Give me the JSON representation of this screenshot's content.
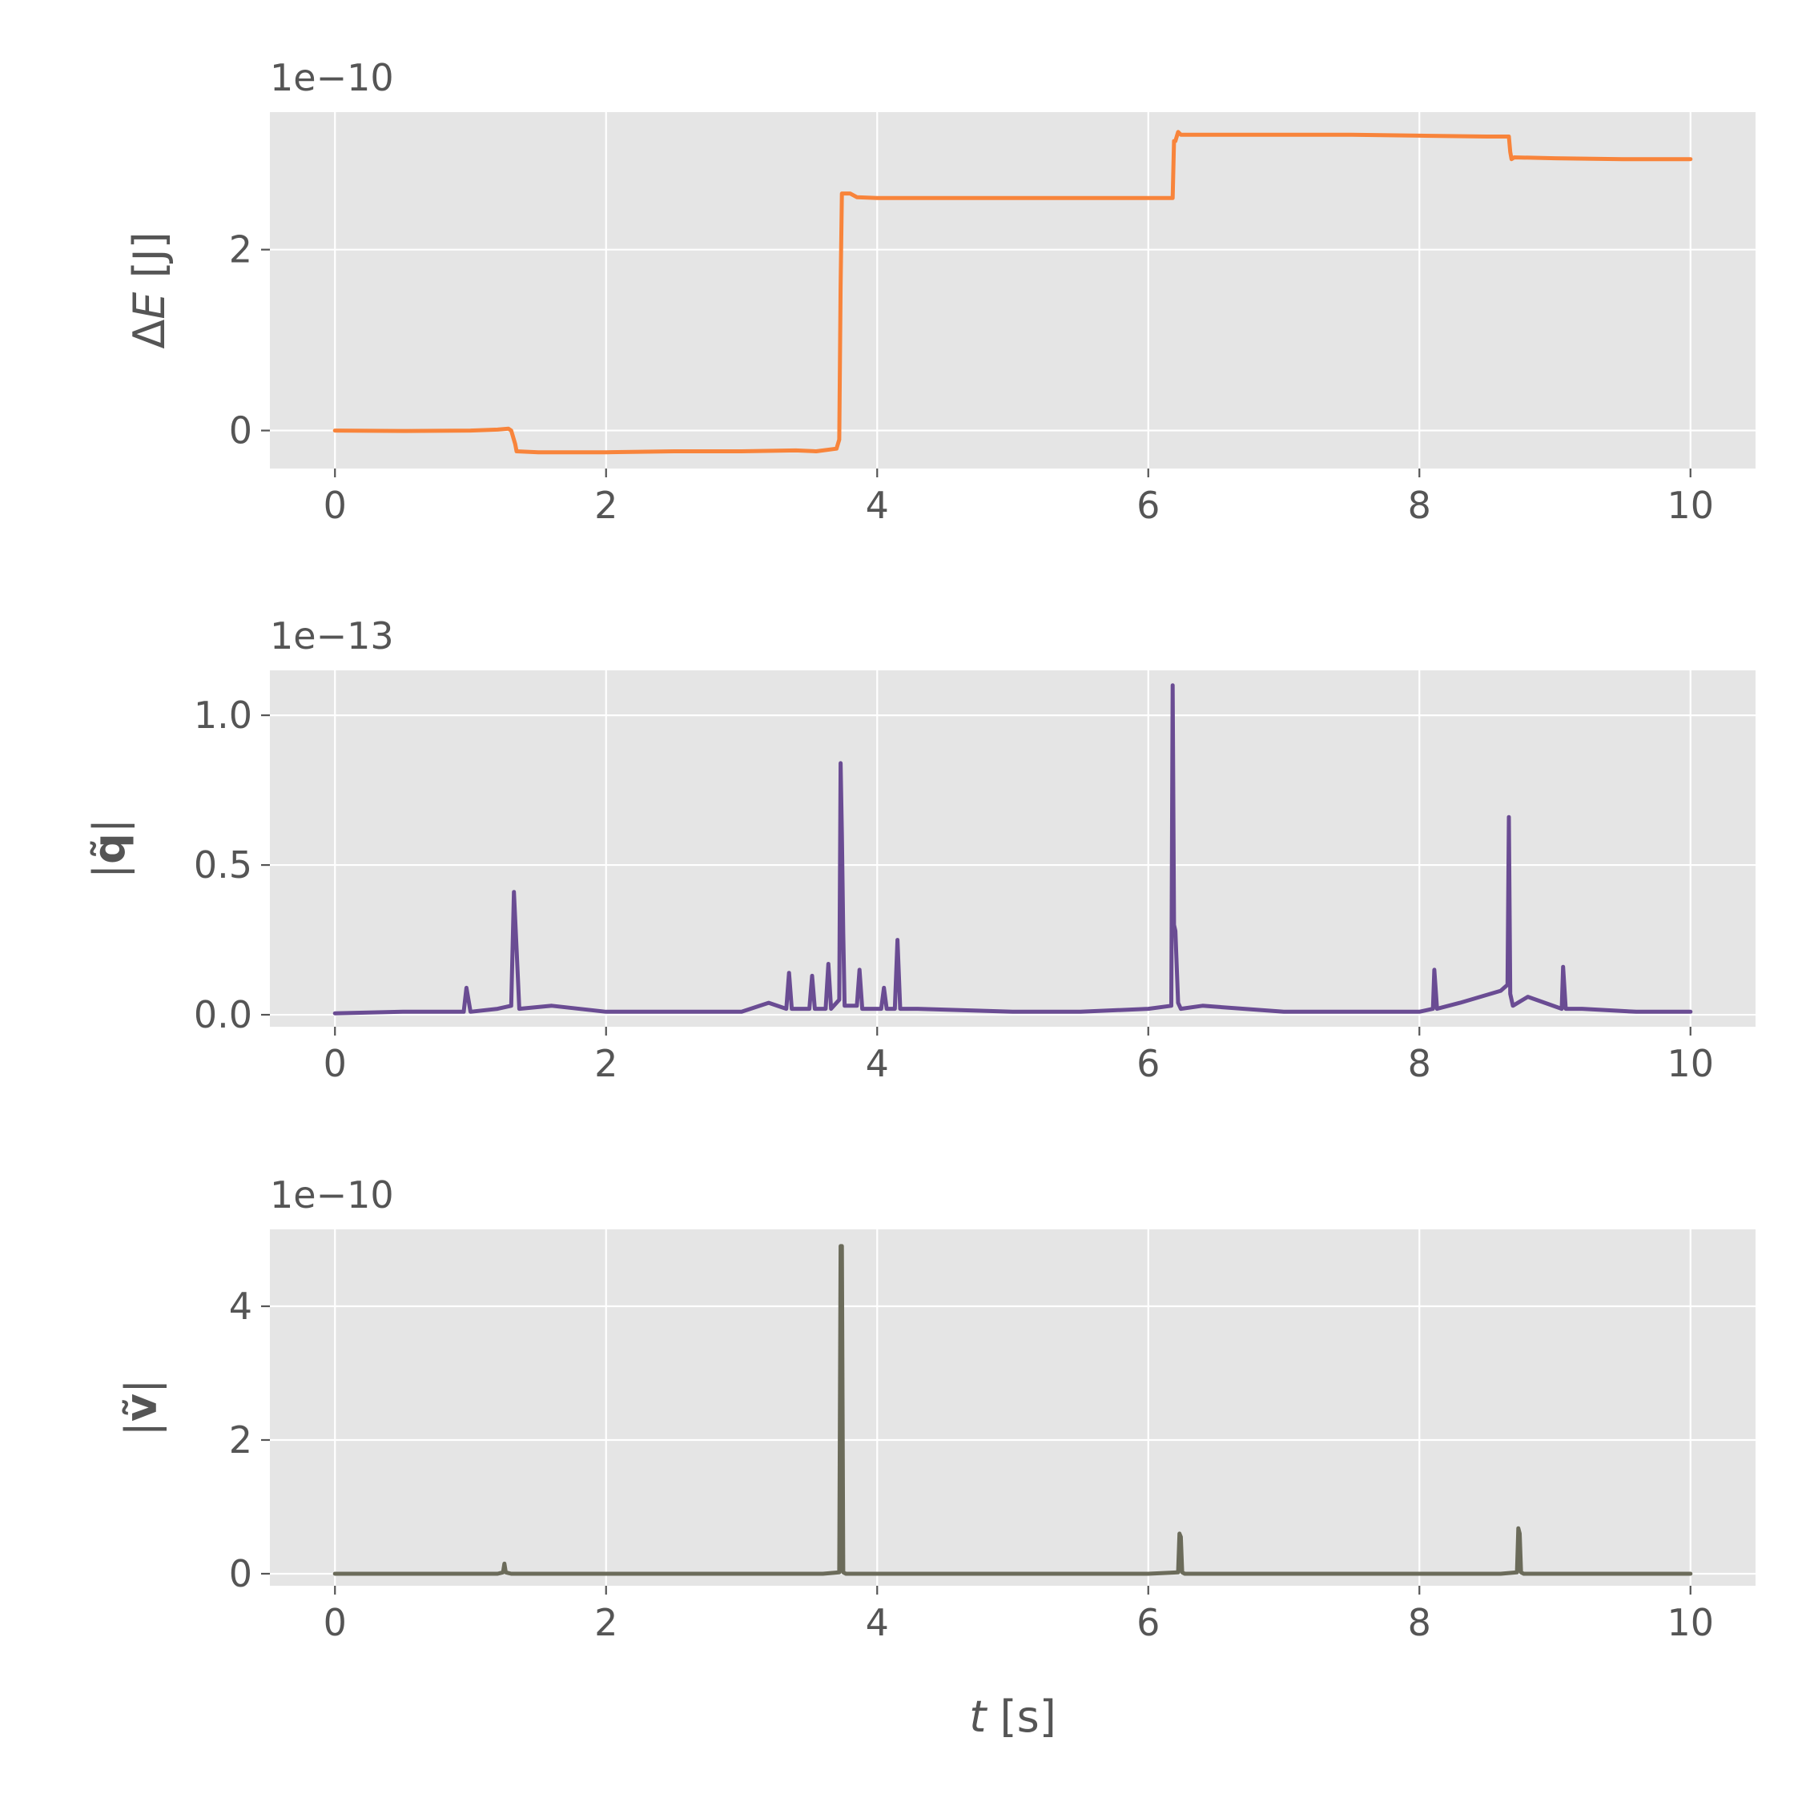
{
  "chart_data": [
    {
      "type": "line",
      "ylabel": "ΔE [J]",
      "offset_text": "1e−10",
      "xlim": [
        -0.48,
        10.48
      ],
      "ylim": [
        -0.42,
        3.52
      ],
      "xticks": [
        0,
        2,
        4,
        6,
        8,
        10
      ],
      "xtick_labels": [
        "0",
        "2",
        "4",
        "6",
        "8",
        "10"
      ],
      "yticks": [
        0,
        2
      ],
      "ytick_labels": [
        "0",
        "2"
      ],
      "grid": true,
      "color": "#f8843b",
      "series": [
        {
          "x": [
            0,
            0.5,
            1.0,
            1.2,
            1.28,
            1.3,
            1.33,
            1.34,
            1.5,
            2.0,
            2.5,
            3.0,
            3.4,
            3.55,
            3.7,
            3.72,
            3.73,
            3.74,
            3.75,
            3.8,
            3.85,
            4.0,
            4.5,
            5.0,
            5.5,
            6.0,
            6.18,
            6.19,
            6.2,
            6.22,
            6.24,
            6.3,
            7.0,
            7.5,
            8.0,
            8.5,
            8.66,
            8.67,
            8.68,
            8.7,
            9.0,
            9.5,
            10.0
          ],
          "y": [
            0,
            -0.005,
            0.0,
            0.01,
            0.02,
            0.0,
            -0.15,
            -0.23,
            -0.24,
            -0.24,
            -0.23,
            -0.23,
            -0.22,
            -0.23,
            -0.2,
            -0.1,
            1.6,
            2.62,
            2.62,
            2.62,
            2.58,
            2.57,
            2.57,
            2.57,
            2.57,
            2.57,
            2.57,
            3.2,
            3.2,
            3.3,
            3.27,
            3.27,
            3.27,
            3.27,
            3.26,
            3.25,
            3.25,
            3.08,
            3.0,
            3.02,
            3.01,
            3.0,
            3.0
          ]
        }
      ]
    },
    {
      "type": "line",
      "ylabel": "|q̃|",
      "offset_text": "1e−13",
      "xlim": [
        -0.48,
        10.48
      ],
      "ylim": [
        -0.04,
        1.15
      ],
      "xticks": [
        0,
        2,
        4,
        6,
        8,
        10
      ],
      "xtick_labels": [
        "0",
        "2",
        "4",
        "6",
        "8",
        "10"
      ],
      "yticks": [
        0.0,
        0.5,
        1.0
      ],
      "ytick_labels": [
        "0.0",
        "0.5",
        "1.0"
      ],
      "grid": true,
      "color": "#6a4c93",
      "series": [
        {
          "x": [
            0,
            0.5,
            0.95,
            0.97,
            1.0,
            1.2,
            1.3,
            1.32,
            1.34,
            1.36,
            1.6,
            2.0,
            2.5,
            3.0,
            3.2,
            3.33,
            3.35,
            3.37,
            3.5,
            3.52,
            3.54,
            3.62,
            3.64,
            3.66,
            3.72,
            3.73,
            3.74,
            3.75,
            3.76,
            3.85,
            3.87,
            3.89,
            4.03,
            4.05,
            4.07,
            4.13,
            4.15,
            4.17,
            4.3,
            5.0,
            5.5,
            6.0,
            6.17,
            6.18,
            6.19,
            6.2,
            6.22,
            6.24,
            6.4,
            7.0,
            7.5,
            8.0,
            8.1,
            8.11,
            8.13,
            8.3,
            8.6,
            8.65,
            8.66,
            8.67,
            8.69,
            8.8,
            9.05,
            9.06,
            9.08,
            9.2,
            9.6,
            10.0
          ],
          "y": [
            0.005,
            0.01,
            0.01,
            0.09,
            0.01,
            0.02,
            0.03,
            0.41,
            0.22,
            0.02,
            0.03,
            0.01,
            0.01,
            0.01,
            0.04,
            0.02,
            0.14,
            0.02,
            0.02,
            0.13,
            0.02,
            0.02,
            0.17,
            0.02,
            0.05,
            0.84,
            0.6,
            0.27,
            0.03,
            0.03,
            0.15,
            0.02,
            0.02,
            0.09,
            0.02,
            0.02,
            0.25,
            0.02,
            0.02,
            0.01,
            0.01,
            0.02,
            0.03,
            1.1,
            0.3,
            0.28,
            0.04,
            0.02,
            0.03,
            0.01,
            0.01,
            0.01,
            0.02,
            0.15,
            0.02,
            0.04,
            0.08,
            0.1,
            0.66,
            0.07,
            0.03,
            0.06,
            0.02,
            0.16,
            0.02,
            0.02,
            0.01,
            0.01
          ]
        }
      ]
    },
    {
      "type": "line",
      "ylabel": "|ṽ|",
      "offset_text": "1e−10",
      "xlim": [
        -0.48,
        10.48
      ],
      "ylim": [
        -0.18,
        5.15
      ],
      "xticks": [
        0,
        2,
        4,
        6,
        8,
        10
      ],
      "xtick_labels": [
        "0",
        "2",
        "4",
        "6",
        "8",
        "10"
      ],
      "yticks": [
        0,
        2,
        4
      ],
      "ytick_labels": [
        "0",
        "2",
        "4"
      ],
      "grid": true,
      "xlabel": "t [s]",
      "color": "#6b6b5a",
      "series": [
        {
          "x": [
            0,
            1.2,
            1.24,
            1.25,
            1.26,
            1.3,
            3.6,
            3.72,
            3.73,
            3.74,
            3.75,
            3.77,
            6.0,
            6.22,
            6.23,
            6.24,
            6.25,
            6.27,
            8.6,
            8.72,
            8.73,
            8.74,
            8.75,
            8.77,
            10.0
          ],
          "y": [
            0,
            0,
            0.02,
            0.15,
            0.02,
            0,
            0,
            0.02,
            4.9,
            4.9,
            0.02,
            0,
            0,
            0.02,
            0.6,
            0.55,
            0.02,
            0,
            0,
            0.02,
            0.68,
            0.6,
            0.02,
            0,
            0
          ]
        }
      ]
    }
  ]
}
